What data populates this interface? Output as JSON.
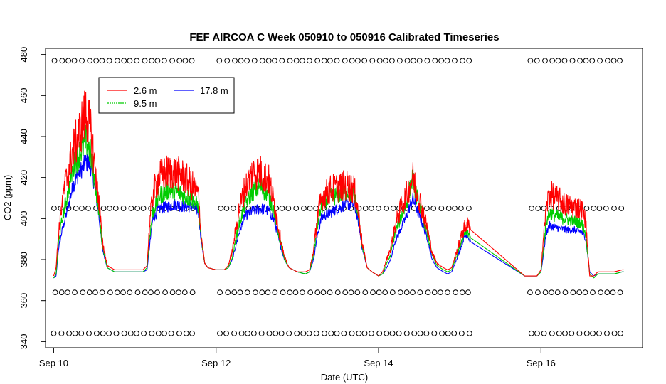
{
  "chart_data": {
    "type": "line",
    "title": "FEF AIRCOA C  Week 050910 to 050916  Calibrated Timeseries",
    "xlabel": "Date (UTC)",
    "ylabel": "CO2 (ppm)",
    "x_unit": "days since Sep 10 00:00 UTC",
    "xlim": [
      -0.1,
      7.25
    ],
    "ylim": [
      337,
      483
    ],
    "x_ticks": [
      {
        "x": 0,
        "label": "Sep 10"
      },
      {
        "x": 2,
        "label": "Sep 12"
      },
      {
        "x": 4,
        "label": "Sep 14"
      },
      {
        "x": 6,
        "label": "Sep 16"
      }
    ],
    "y_ticks": [
      {
        "y": 340,
        "label": "340"
      },
      {
        "y": 360,
        "label": "360"
      },
      {
        "y": 380,
        "label": "380"
      },
      {
        "y": 400,
        "label": "400"
      },
      {
        "y": 420,
        "label": "420"
      },
      {
        "y": 440,
        "label": "440"
      },
      {
        "y": 460,
        "label": "460"
      },
      {
        "y": 480,
        "label": "480"
      }
    ],
    "legend": {
      "position": "top-left",
      "entries": [
        {
          "name": "2.6 m",
          "color": "#ff0000"
        },
        {
          "name": "9.5 m",
          "color": "#00cc00"
        },
        {
          "name": "17.8 m",
          "color": "#0000ff"
        }
      ]
    },
    "series": [
      {
        "name": "17.8 m",
        "color": "#0000ff",
        "noise": 6,
        "points": [
          [
            0.0,
            371
          ],
          [
            0.03,
            372
          ],
          [
            0.06,
            385
          ],
          [
            0.1,
            393
          ],
          [
            0.14,
            399
          ],
          [
            0.18,
            405
          ],
          [
            0.22,
            412
          ],
          [
            0.26,
            417
          ],
          [
            0.3,
            420
          ],
          [
            0.35,
            423
          ],
          [
            0.4,
            426
          ],
          [
            0.45,
            425
          ],
          [
            0.5,
            416
          ],
          [
            0.55,
            403
          ],
          [
            0.6,
            385
          ],
          [
            0.66,
            376
          ],
          [
            0.75,
            374
          ],
          [
            0.85,
            374
          ],
          [
            0.95,
            374
          ],
          [
            1.0,
            374
          ],
          [
            1.05,
            374
          ],
          [
            1.1,
            374
          ],
          [
            1.15,
            375
          ],
          [
            1.18,
            386
          ],
          [
            1.22,
            399
          ],
          [
            1.3,
            404
          ],
          [
            1.4,
            405
          ],
          [
            1.5,
            406
          ],
          [
            1.6,
            405
          ],
          [
            1.7,
            405
          ],
          [
            1.78,
            403
          ],
          [
            1.82,
            388
          ],
          [
            1.86,
            378
          ],
          [
            1.9,
            376
          ],
          [
            2.0,
            375
          ],
          [
            2.1,
            375
          ],
          [
            2.15,
            376
          ],
          [
            2.2,
            380
          ],
          [
            2.28,
            392
          ],
          [
            2.35,
            400
          ],
          [
            2.45,
            403
          ],
          [
            2.55,
            404
          ],
          [
            2.65,
            403
          ],
          [
            2.72,
            398
          ],
          [
            2.78,
            388
          ],
          [
            2.84,
            380
          ],
          [
            2.9,
            376
          ],
          [
            3.0,
            374
          ],
          [
            3.1,
            373
          ],
          [
            3.15,
            374
          ],
          [
            3.2,
            380
          ],
          [
            3.25,
            392
          ],
          [
            3.3,
            400
          ],
          [
            3.4,
            402
          ],
          [
            3.5,
            404
          ],
          [
            3.6,
            406
          ],
          [
            3.7,
            406
          ],
          [
            3.75,
            398
          ],
          [
            3.8,
            385
          ],
          [
            3.86,
            376
          ],
          [
            3.92,
            374
          ],
          [
            4.0,
            372
          ],
          [
            4.05,
            373
          ],
          [
            4.1,
            376
          ],
          [
            4.15,
            380
          ],
          [
            4.2,
            388
          ],
          [
            4.28,
            395
          ],
          [
            4.35,
            401
          ],
          [
            4.42,
            409
          ],
          [
            4.48,
            403
          ],
          [
            4.53,
            398
          ],
          [
            4.6,
            390
          ],
          [
            4.66,
            380
          ],
          [
            4.72,
            376
          ],
          [
            4.8,
            374
          ],
          [
            4.85,
            373
          ],
          [
            4.9,
            374
          ],
          [
            5.0,
            384
          ],
          [
            5.05,
            390
          ],
          [
            5.09,
            392
          ],
          [
            5.12,
            389
          ],
          [
            5.8,
            372
          ],
          [
            5.88,
            372
          ],
          [
            5.95,
            372
          ],
          [
            6.0,
            374
          ],
          [
            6.03,
            382
          ],
          [
            6.06,
            392
          ],
          [
            6.1,
            396
          ],
          [
            6.2,
            395
          ],
          [
            6.3,
            394
          ],
          [
            6.4,
            394
          ],
          [
            6.5,
            393
          ],
          [
            6.55,
            390
          ],
          [
            6.6,
            374
          ],
          [
            6.65,
            372
          ],
          [
            6.7,
            373
          ],
          [
            6.8,
            373
          ],
          [
            6.9,
            373
          ],
          [
            7.0,
            374
          ],
          [
            7.02,
            374
          ]
        ]
      },
      {
        "name": "9.5 m",
        "color": "#00cc00",
        "noise": 8,
        "points": [
          [
            0.0,
            371
          ],
          [
            0.03,
            373
          ],
          [
            0.06,
            388
          ],
          [
            0.1,
            398
          ],
          [
            0.14,
            405
          ],
          [
            0.18,
            412
          ],
          [
            0.22,
            420
          ],
          [
            0.26,
            425
          ],
          [
            0.3,
            428
          ],
          [
            0.35,
            432
          ],
          [
            0.4,
            436
          ],
          [
            0.45,
            430
          ],
          [
            0.5,
            418
          ],
          [
            0.55,
            405
          ],
          [
            0.6,
            386
          ],
          [
            0.66,
            376
          ],
          [
            0.75,
            374
          ],
          [
            0.85,
            374
          ],
          [
            0.95,
            374
          ],
          [
            1.0,
            374
          ],
          [
            1.05,
            374
          ],
          [
            1.1,
            374
          ],
          [
            1.15,
            376
          ],
          [
            1.18,
            390
          ],
          [
            1.22,
            402
          ],
          [
            1.3,
            410
          ],
          [
            1.4,
            412
          ],
          [
            1.5,
            412
          ],
          [
            1.6,
            410
          ],
          [
            1.7,
            408
          ],
          [
            1.78,
            405
          ],
          [
            1.82,
            389
          ],
          [
            1.86,
            378
          ],
          [
            1.9,
            376
          ],
          [
            2.0,
            375
          ],
          [
            2.1,
            375
          ],
          [
            2.15,
            376
          ],
          [
            2.2,
            381
          ],
          [
            2.28,
            396
          ],
          [
            2.35,
            405
          ],
          [
            2.45,
            412
          ],
          [
            2.55,
            414
          ],
          [
            2.65,
            410
          ],
          [
            2.72,
            402
          ],
          [
            2.78,
            390
          ],
          [
            2.84,
            380
          ],
          [
            2.9,
            376
          ],
          [
            3.0,
            374
          ],
          [
            3.1,
            373
          ],
          [
            3.15,
            374
          ],
          [
            3.2,
            382
          ],
          [
            3.25,
            396
          ],
          [
            3.3,
            405
          ],
          [
            3.4,
            409
          ],
          [
            3.5,
            410
          ],
          [
            3.6,
            412
          ],
          [
            3.7,
            410
          ],
          [
            3.75,
            400
          ],
          [
            3.8,
            386
          ],
          [
            3.86,
            376
          ],
          [
            3.92,
            374
          ],
          [
            4.0,
            372
          ],
          [
            4.05,
            373
          ],
          [
            4.1,
            378
          ],
          [
            4.15,
            382
          ],
          [
            4.2,
            392
          ],
          [
            4.28,
            400
          ],
          [
            4.35,
            407
          ],
          [
            4.42,
            418
          ],
          [
            4.48,
            408
          ],
          [
            4.53,
            402
          ],
          [
            4.6,
            392
          ],
          [
            4.66,
            382
          ],
          [
            4.72,
            377
          ],
          [
            4.8,
            375
          ],
          [
            4.85,
            374
          ],
          [
            4.9,
            375
          ],
          [
            5.0,
            386
          ],
          [
            5.05,
            392
          ],
          [
            5.09,
            394
          ],
          [
            5.12,
            391
          ],
          [
            5.8,
            372
          ],
          [
            5.88,
            372
          ],
          [
            5.95,
            372
          ],
          [
            6.0,
            374
          ],
          [
            6.03,
            385
          ],
          [
            6.06,
            396
          ],
          [
            6.1,
            402
          ],
          [
            6.2,
            400
          ],
          [
            6.3,
            399
          ],
          [
            6.4,
            398
          ],
          [
            6.5,
            397
          ],
          [
            6.55,
            392
          ],
          [
            6.6,
            373
          ],
          [
            6.65,
            371
          ],
          [
            6.7,
            373
          ],
          [
            6.8,
            373
          ],
          [
            6.9,
            373
          ],
          [
            7.0,
            374
          ],
          [
            7.02,
            374
          ]
        ]
      },
      {
        "name": "2.6 m",
        "color": "#ff0000",
        "noise": 12,
        "points": [
          [
            0.0,
            372
          ],
          [
            0.03,
            376
          ],
          [
            0.06,
            392
          ],
          [
            0.1,
            405
          ],
          [
            0.14,
            414
          ],
          [
            0.18,
            420
          ],
          [
            0.22,
            428
          ],
          [
            0.26,
            432
          ],
          [
            0.3,
            436
          ],
          [
            0.35,
            442
          ],
          [
            0.4,
            448
          ],
          [
            0.45,
            440
          ],
          [
            0.5,
            425
          ],
          [
            0.55,
            410
          ],
          [
            0.6,
            388
          ],
          [
            0.66,
            377
          ],
          [
            0.75,
            375
          ],
          [
            0.85,
            375
          ],
          [
            0.95,
            375
          ],
          [
            1.0,
            375
          ],
          [
            1.05,
            375
          ],
          [
            1.1,
            375
          ],
          [
            1.15,
            377
          ],
          [
            1.18,
            395
          ],
          [
            1.22,
            410
          ],
          [
            1.3,
            418
          ],
          [
            1.4,
            420
          ],
          [
            1.5,
            420
          ],
          [
            1.6,
            418
          ],
          [
            1.7,
            414
          ],
          [
            1.78,
            410
          ],
          [
            1.82,
            390
          ],
          [
            1.86,
            378
          ],
          [
            1.9,
            376
          ],
          [
            2.0,
            375
          ],
          [
            2.1,
            375
          ],
          [
            2.15,
            377
          ],
          [
            2.2,
            384
          ],
          [
            2.28,
            402
          ],
          [
            2.35,
            412
          ],
          [
            2.45,
            420
          ],
          [
            2.55,
            420
          ],
          [
            2.65,
            416
          ],
          [
            2.72,
            405
          ],
          [
            2.78,
            392
          ],
          [
            2.84,
            381
          ],
          [
            2.9,
            376
          ],
          [
            3.0,
            374
          ],
          [
            3.1,
            374
          ],
          [
            3.15,
            375
          ],
          [
            3.2,
            384
          ],
          [
            3.25,
            400
          ],
          [
            3.3,
            408
          ],
          [
            3.4,
            412
          ],
          [
            3.5,
            413
          ],
          [
            3.6,
            414
          ],
          [
            3.7,
            412
          ],
          [
            3.75,
            402
          ],
          [
            3.8,
            387
          ],
          [
            3.86,
            376
          ],
          [
            3.92,
            374
          ],
          [
            4.0,
            372
          ],
          [
            4.05,
            374
          ],
          [
            4.1,
            380
          ],
          [
            4.15,
            385
          ],
          [
            4.2,
            395
          ],
          [
            4.28,
            404
          ],
          [
            4.35,
            410
          ],
          [
            4.42,
            418
          ],
          [
            4.48,
            410
          ],
          [
            4.53,
            404
          ],
          [
            4.6,
            394
          ],
          [
            4.66,
            383
          ],
          [
            4.72,
            378
          ],
          [
            4.8,
            376
          ],
          [
            4.85,
            375
          ],
          [
            4.9,
            376
          ],
          [
            5.0,
            388
          ],
          [
            5.05,
            394
          ],
          [
            5.09,
            396
          ],
          [
            5.12,
            395
          ],
          [
            5.8,
            372
          ],
          [
            5.88,
            372
          ],
          [
            5.95,
            372
          ],
          [
            6.0,
            375
          ],
          [
            6.03,
            390
          ],
          [
            6.06,
            402
          ],
          [
            6.1,
            410
          ],
          [
            6.2,
            408
          ],
          [
            6.3,
            405
          ],
          [
            6.4,
            404
          ],
          [
            6.5,
            403
          ],
          [
            6.55,
            398
          ],
          [
            6.6,
            372
          ],
          [
            6.65,
            372
          ],
          [
            6.7,
            374
          ],
          [
            6.8,
            374
          ],
          [
            6.9,
            374
          ],
          [
            7.0,
            375
          ],
          [
            7.02,
            375
          ]
        ]
      }
    ],
    "status_markers": {
      "symbol": "o",
      "rows": [
        477,
        405,
        364,
        344
      ],
      "gaps": [
        [
          1.75,
          1.98
        ],
        [
          5.12,
          5.78
        ]
      ],
      "range": [
        0.0,
        7.02
      ],
      "spacing": 0.085
    }
  }
}
